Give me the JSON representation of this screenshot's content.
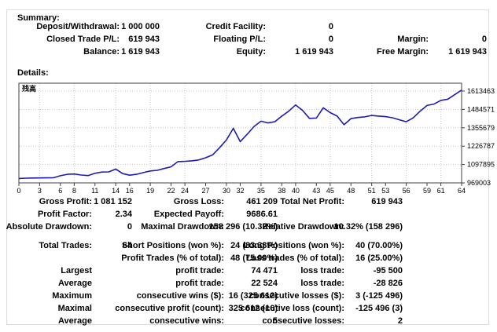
{
  "summary": {
    "title": "Summary:",
    "rows": [
      [
        {
          "c": 0,
          "l": "Deposit/Withdrawal:",
          "v": "1 000 000"
        },
        {
          "c": 1,
          "l": "Credit Facility:",
          "v": "0"
        }
      ],
      [
        {
          "c": 0,
          "l": "Closed Trade P/L:",
          "v": "619 943"
        },
        {
          "c": 1,
          "l": "Floating P/L:",
          "v": "0"
        },
        {
          "c": 2,
          "l": "Margin:",
          "v": "0"
        }
      ],
      [
        {
          "c": 0,
          "l": "Balance:",
          "v": "1 619 943"
        },
        {
          "c": 1,
          "l": "Equity:",
          "v": "1 619 943"
        },
        {
          "c": 2,
          "l": "Free Margin:",
          "v": "1 619 943"
        }
      ]
    ]
  },
  "details": {
    "title": "Details:",
    "rows": [
      [
        "Gross Profit:",
        "1 081 152",
        "Gross Loss:",
        "461 209",
        "Total Net Profit:",
        "619 943"
      ],
      [
        "Profit Factor:",
        "2.34",
        "Expected Payoff:",
        "9686.61",
        "",
        ""
      ],
      [
        "Absolute Drawdown:",
        "0",
        "Maximal Drawdown:",
        "158 296 (10.32%)",
        "Relative Drawdown:",
        "10.32% (158 296)"
      ],
      [
        "Total Trades:",
        "64",
        "Short Positions (won %):",
        "24 (83.33%)",
        "Long Positions (won %):",
        "40 (70.00%)"
      ],
      [
        "",
        "",
        "Profit Trades (% of total):",
        "48 (75.00%)",
        "Loss trades (% of total):",
        "16 (25.00%)"
      ],
      [
        "Largest",
        "",
        "profit trade:",
        "74 471",
        "loss trade:",
        "-95 500"
      ],
      [
        "Average",
        "",
        "profit trade:",
        "22 524",
        "loss trade:",
        "-28 826"
      ],
      [
        "Maximum",
        "",
        "consecutive wins ($):",
        "16 (325 612)",
        "consecutive losses ($):",
        "3 (-125 496)"
      ],
      [
        "Maximal",
        "",
        "consecutive profit (count):",
        "325 612 (16)",
        "consecutive loss (count):",
        "-125 496 (3)"
      ],
      [
        "Average",
        "",
        "consecutive wins:",
        "5",
        "consecutive losses:",
        "2"
      ]
    ]
  },
  "chart_data": {
    "type": "line",
    "title": "残高",
    "xlabel": "",
    "ylabel": "",
    "xlim": [
      0,
      64
    ],
    "x_ticks": [
      0,
      3,
      6,
      8,
      11,
      14,
      16,
      19,
      22,
      24,
      27,
      30,
      32,
      35,
      38,
      40,
      43,
      45,
      48,
      51,
      53,
      56,
      59,
      61,
      64
    ],
    "y_ticks": [
      969003,
      1097895,
      1226787,
      1355679,
      1484571,
      1613463
    ],
    "grid_x": [
      3,
      8,
      14,
      19,
      24,
      30,
      35,
      40,
      45,
      51,
      56,
      61
    ],
    "grid": "dotted",
    "legend_position": "top-left-inside",
    "series": [
      {
        "name": "残高",
        "values": [
          1000000,
          1002000,
          1003000,
          1003500,
          1004000,
          1005000,
          1019000,
          1029000,
          1031000,
          1024000,
          1020000,
          1036000,
          1045000,
          1046000,
          1066000,
          1034000,
          1023000,
          1029000,
          1041000,
          1053000,
          1057000,
          1070000,
          1082000,
          1118000,
          1120000,
          1124000,
          1130000,
          1145000,
          1165000,
          1215000,
          1270000,
          1352000,
          1258000,
          1310000,
          1365000,
          1402000,
          1390000,
          1398000,
          1437000,
          1472000,
          1516000,
          1478000,
          1422000,
          1424000,
          1496000,
          1462000,
          1438000,
          1377000,
          1420000,
          1428000,
          1432000,
          1442000,
          1438000,
          1434000,
          1426000,
          1412000,
          1398000,
          1425000,
          1472000,
          1512000,
          1522000,
          1548000,
          1556000,
          1588000,
          1619943
        ]
      }
    ],
    "colors": {
      "line": "#1c1cb4",
      "grid": "#c6c6c6",
      "frame": "#404040",
      "text": "#000000"
    }
  }
}
